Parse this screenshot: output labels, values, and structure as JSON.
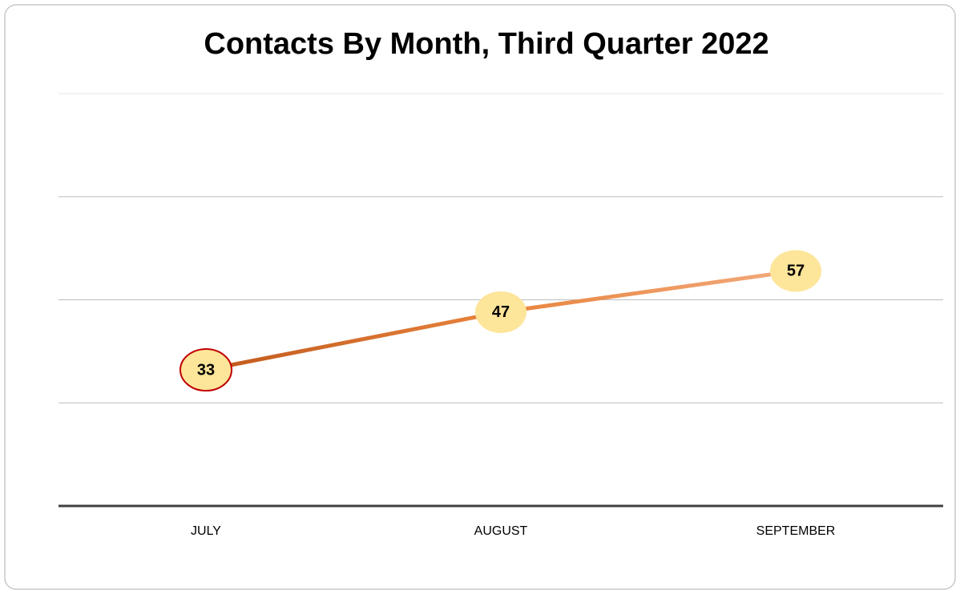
{
  "chart_data": {
    "type": "line",
    "title": "Contacts By Month, Third Quarter 2022",
    "categories": [
      "JULY",
      "AUGUST",
      "SEPTEMBER"
    ],
    "series": [
      {
        "name": "Contacts",
        "color": "#e07b39",
        "values": [
          33,
          47,
          57
        ]
      }
    ],
    "marker_color": "#fde59a",
    "ylim": [
      0,
      100
    ],
    "yticks": [
      0,
      25,
      50,
      75,
      100
    ],
    "grid": true
  }
}
